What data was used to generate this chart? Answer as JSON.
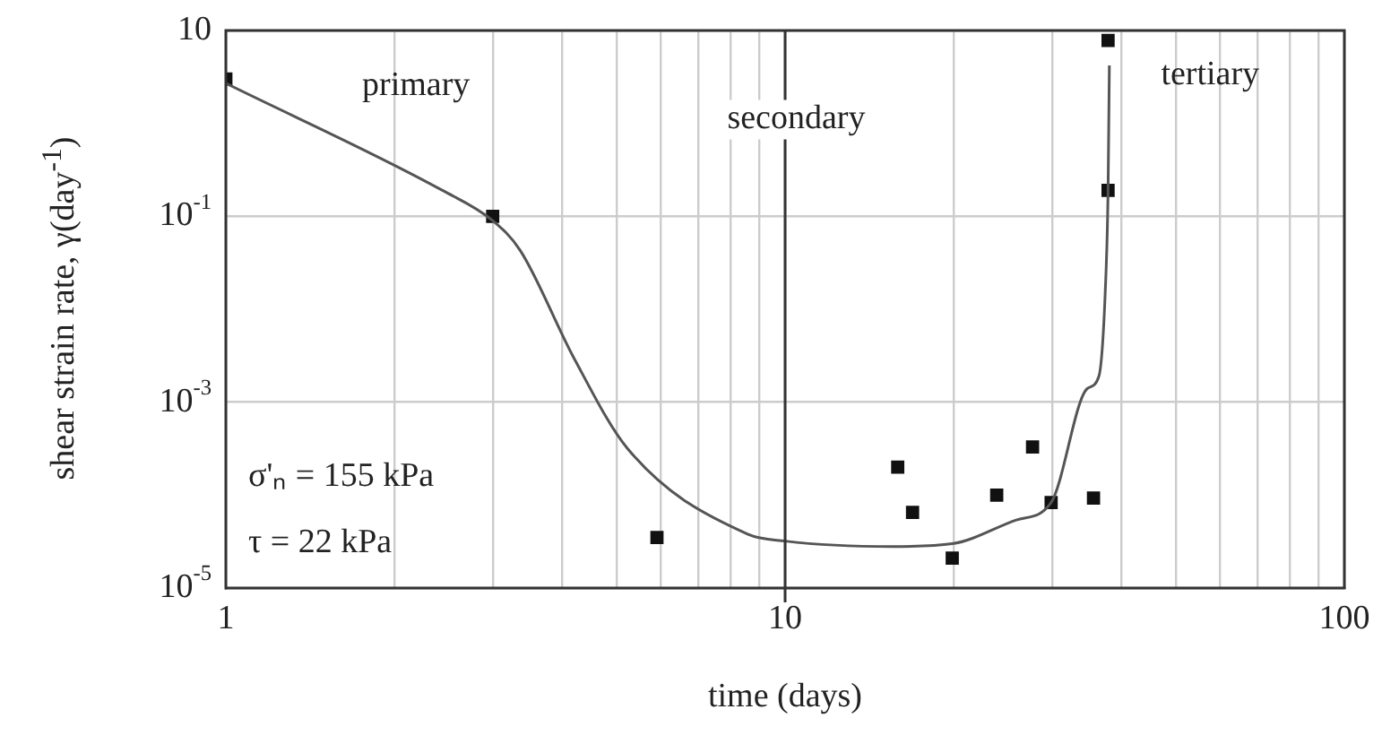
{
  "chart_data": {
    "type": "scatter",
    "xlabel": "time (days)",
    "ylabel": "shear strain rate, γ(day$^{-1}$)",
    "log": "xy",
    "grid": true,
    "legend": false,
    "xlim": [
      1,
      100
    ],
    "ylim": [
      1e-05,
      10
    ],
    "xticks": [
      1,
      {
        "value": 2,
        "label": null
      },
      {
        "value": 3,
        "label": null
      },
      {
        "value": 4,
        "label": null
      },
      {
        "value": 5,
        "label": null
      },
      {
        "value": 6,
        "label": null
      },
      {
        "value": 7,
        "label": null
      },
      {
        "value": 8,
        "label": null
      },
      {
        "value": 9,
        "label": null
      },
      10,
      {
        "value": 20,
        "label": null
      },
      {
        "value": 30,
        "label": null
      },
      {
        "value": 40,
        "label": null
      },
      {
        "value": 50,
        "label": null
      },
      {
        "value": 60,
        "label": null
      },
      {
        "value": 70,
        "label": null
      },
      {
        "value": 80,
        "label": null
      },
      {
        "value": 90,
        "label": null
      },
      100
    ],
    "yticks": [
      {
        "value": 1e-05,
        "label": "10$^{-5}$"
      },
      {
        "value": 0.001,
        "label": "10$^{-3}$"
      },
      {
        "value": 0.1,
        "label": "10$^{-1}$"
      },
      10
    ],
    "ref_lines": [
      {
        "axis": "x",
        "value": 10,
        "color": "#333333"
      }
    ],
    "annotations": [
      "primary",
      "secondary",
      "tertiary",
      "σ'ₙ = 155 kPa",
      "τ = 22 kPa"
    ],
    "series": [
      {
        "type": "line",
        "marker": "none",
        "color": "#555555",
        "x": [
          1,
          2.44,
          3,
          3.36,
          4.19,
          5.22,
          8.57,
          10,
          15.5,
          19.9,
          25.9,
          29.9,
          34.7,
          36.4,
          37.5,
          37.8,
          38
        ],
        "values": [
          2.7,
          0.19,
          0.09,
          0.043,
          0.003,
          0.00032,
          3.8e-05,
          3.2e-05,
          2.8e-05,
          3e-05,
          5.4e-05,
          8.3e-05,
          0.0014,
          0.0019,
          0.027,
          0.19,
          4.2
        ]
      },
      {
        "marker": "square",
        "color": "#111111",
        "x": [
          1,
          3,
          5.9,
          15.9,
          16.9,
          19.9,
          23.9,
          27.7,
          29.9,
          35.6,
          37.8,
          37.8
        ],
        "values": [
          3,
          0.1,
          3.5e-05,
          0.0002,
          6.5e-05,
          2.1e-05,
          0.0001,
          0.00033,
          8.3e-05,
          9.3e-05,
          7.8,
          0.19
        ]
      }
    ]
  }
}
